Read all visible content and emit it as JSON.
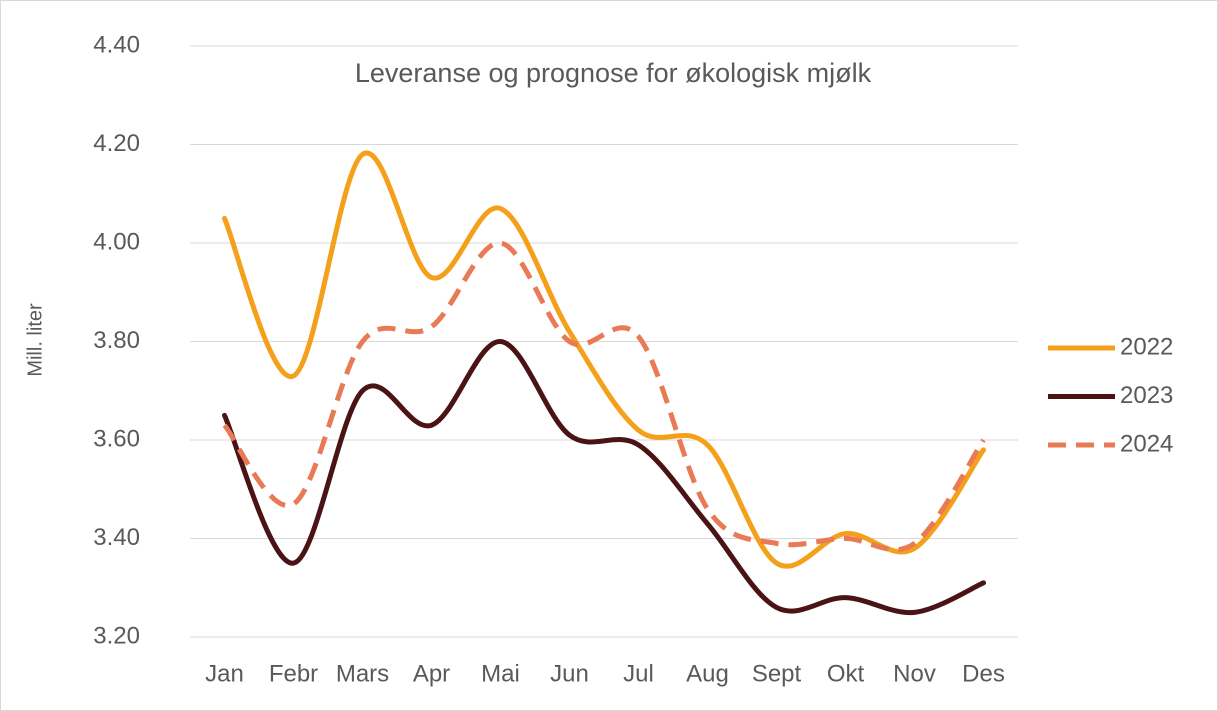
{
  "chart_data": {
    "type": "line",
    "title": "Leveranse og prognose for økologisk mjølk",
    "y_label": "Mill. liter",
    "categories": [
      "Jan",
      "Febr",
      "Mars",
      "Apr",
      "Mai",
      "Jun",
      "Jul",
      "Aug",
      "Sept",
      "Okt",
      "Nov",
      "Des"
    ],
    "series": [
      {
        "name": "2022",
        "color": "#f5a01a",
        "dashed": false,
        "values": [
          4.05,
          3.73,
          4.18,
          3.93,
          4.07,
          3.82,
          3.62,
          3.59,
          3.35,
          3.41,
          3.38,
          3.58
        ]
      },
      {
        "name": "2023",
        "color": "#4a1416",
        "dashed": false,
        "values": [
          3.65,
          3.35,
          3.7,
          3.63,
          3.8,
          3.61,
          3.59,
          3.43,
          3.26,
          3.28,
          3.25,
          3.31
        ]
      },
      {
        "name": "2024",
        "color": "#e87a55",
        "dashed": true,
        "values": [
          3.63,
          3.47,
          3.8,
          3.83,
          4.0,
          3.8,
          3.81,
          3.46,
          3.39,
          3.4,
          3.39,
          3.6
        ]
      }
    ],
    "ylim": [
      3.2,
      4.4
    ],
    "yticks": [
      {
        "value": 3.2,
        "label": "3.20"
      },
      {
        "value": 3.4,
        "label": "3.40"
      },
      {
        "value": 3.6,
        "label": "3.60"
      },
      {
        "value": 3.8,
        "label": "3.80"
      },
      {
        "value": 4.0,
        "label": "4.00"
      },
      {
        "value": 4.2,
        "label": "4.20"
      },
      {
        "value": 4.4,
        "label": "4.40"
      }
    ],
    "grid": true,
    "smooth": true,
    "legend": "right"
  }
}
